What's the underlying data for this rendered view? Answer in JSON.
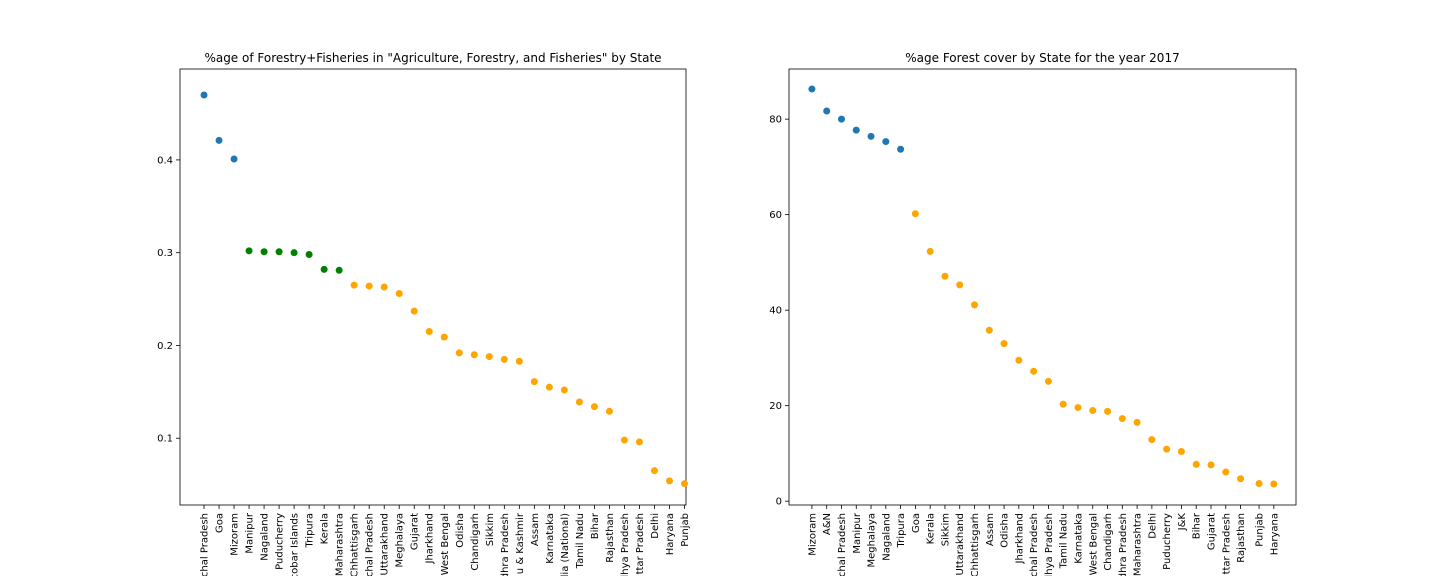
{
  "chart_data": [
    {
      "type": "scatter",
      "title": "%age of Forestry+Fisheries in \"Agriculture, Forestry, and Fisheries\" by State",
      "xlabel": "",
      "ylabel": "",
      "ylim": [
        0.028,
        0.498
      ],
      "yticks": [
        0.1,
        0.2,
        0.3,
        0.4
      ],
      "grid": false,
      "categories": [
        "chal Pradesh",
        "Goa",
        "Mizoram",
        "Manipur",
        "Nagaland",
        "Puducherry",
        "cobar Islands",
        "Tripura",
        "Kerala",
        "Maharashtra",
        "Chhattisgarh",
        "chal Pradesh",
        "Uttarakhand",
        "Meghalaya",
        "Gujarat",
        "Jharkhand",
        "West Bengal",
        "Odisha",
        "Chandigarh",
        "Sikkim",
        "dhra Pradesh",
        "u & Kashmir",
        "Assam",
        "Karnataka",
        "dia (National)",
        "Tamil Nadu",
        "Bihar",
        "Rajasthan",
        "dhya Pradesh",
        "ttar Pradesh",
        "Delhi",
        "Haryana",
        "Punjab"
      ],
      "series": [
        {
          "color": "#1f77b4",
          "start": 0,
          "values": [
            0.47,
            0.421,
            0.401
          ]
        },
        {
          "color": "#008000",
          "start": 3,
          "values": [
            0.302,
            0.301,
            0.301,
            0.3,
            0.298,
            0.282,
            0.281
          ]
        },
        {
          "color": "#ffa500",
          "start": 10,
          "values": [
            0.265,
            0.264,
            0.263,
            0.256,
            0.237,
            0.215,
            0.209,
            0.192,
            0.19,
            0.188,
            0.185,
            0.183,
            0.161,
            0.155,
            0.152,
            0.139,
            0.134,
            0.129,
            0.098,
            0.096,
            0.065,
            0.054,
            0.051
          ]
        }
      ]
    },
    {
      "type": "scatter",
      "title": "%age Forest cover by State for the year 2017",
      "xlabel": "",
      "ylabel": "",
      "ylim": [
        -0.8,
        90.5
      ],
      "yticks": [
        0,
        20,
        40,
        60,
        80
      ],
      "grid": false,
      "categories": [
        "Mizoram",
        "A&N",
        "chal Pradesh",
        "Manipur",
        "Meghalaya",
        "Nagaland",
        "Tripura",
        "Goa",
        "Kerala",
        "Sikkim",
        "Uttarakhand",
        "Chhattisgarh",
        "Assam",
        "Odisha",
        "Jharkhand",
        "chal Pradesh",
        "dhya Pradesh",
        "Tamil Nadu",
        "Karnataka",
        "West Bengal",
        "Chandigarh",
        "dhra Pradesh",
        "Maharashtra",
        "Delhi",
        "Puducherry",
        "J&K",
        "Bihar",
        "Gujarat",
        "ttar Pradesh",
        "Rajasthan",
        "Punjab",
        "Haryana"
      ],
      "positions": [
        0,
        1,
        2,
        3,
        4,
        5,
        6,
        7,
        8,
        9,
        10,
        11,
        12,
        13,
        14,
        15,
        16,
        17,
        18,
        19,
        20,
        21,
        22,
        23,
        24,
        25,
        26,
        27,
        28,
        29,
        30.25,
        31.25
      ],
      "series": [
        {
          "color": "#1f77b4",
          "start": 0,
          "values": [
            86.3,
            81.7,
            80.0,
            77.7,
            76.4,
            75.3,
            73.7
          ]
        },
        {
          "color": "#ffa500",
          "start": 7,
          "values": [
            60.2,
            52.3,
            47.1,
            45.3,
            41.1,
            35.8,
            33.0,
            29.5,
            27.2,
            25.1,
            20.3,
            19.6,
            19.0,
            18.8,
            17.3,
            16.5,
            12.9,
            10.9,
            10.4,
            7.7,
            7.6,
            6.1,
            4.7,
            3.7,
            3.6
          ]
        }
      ]
    }
  ]
}
